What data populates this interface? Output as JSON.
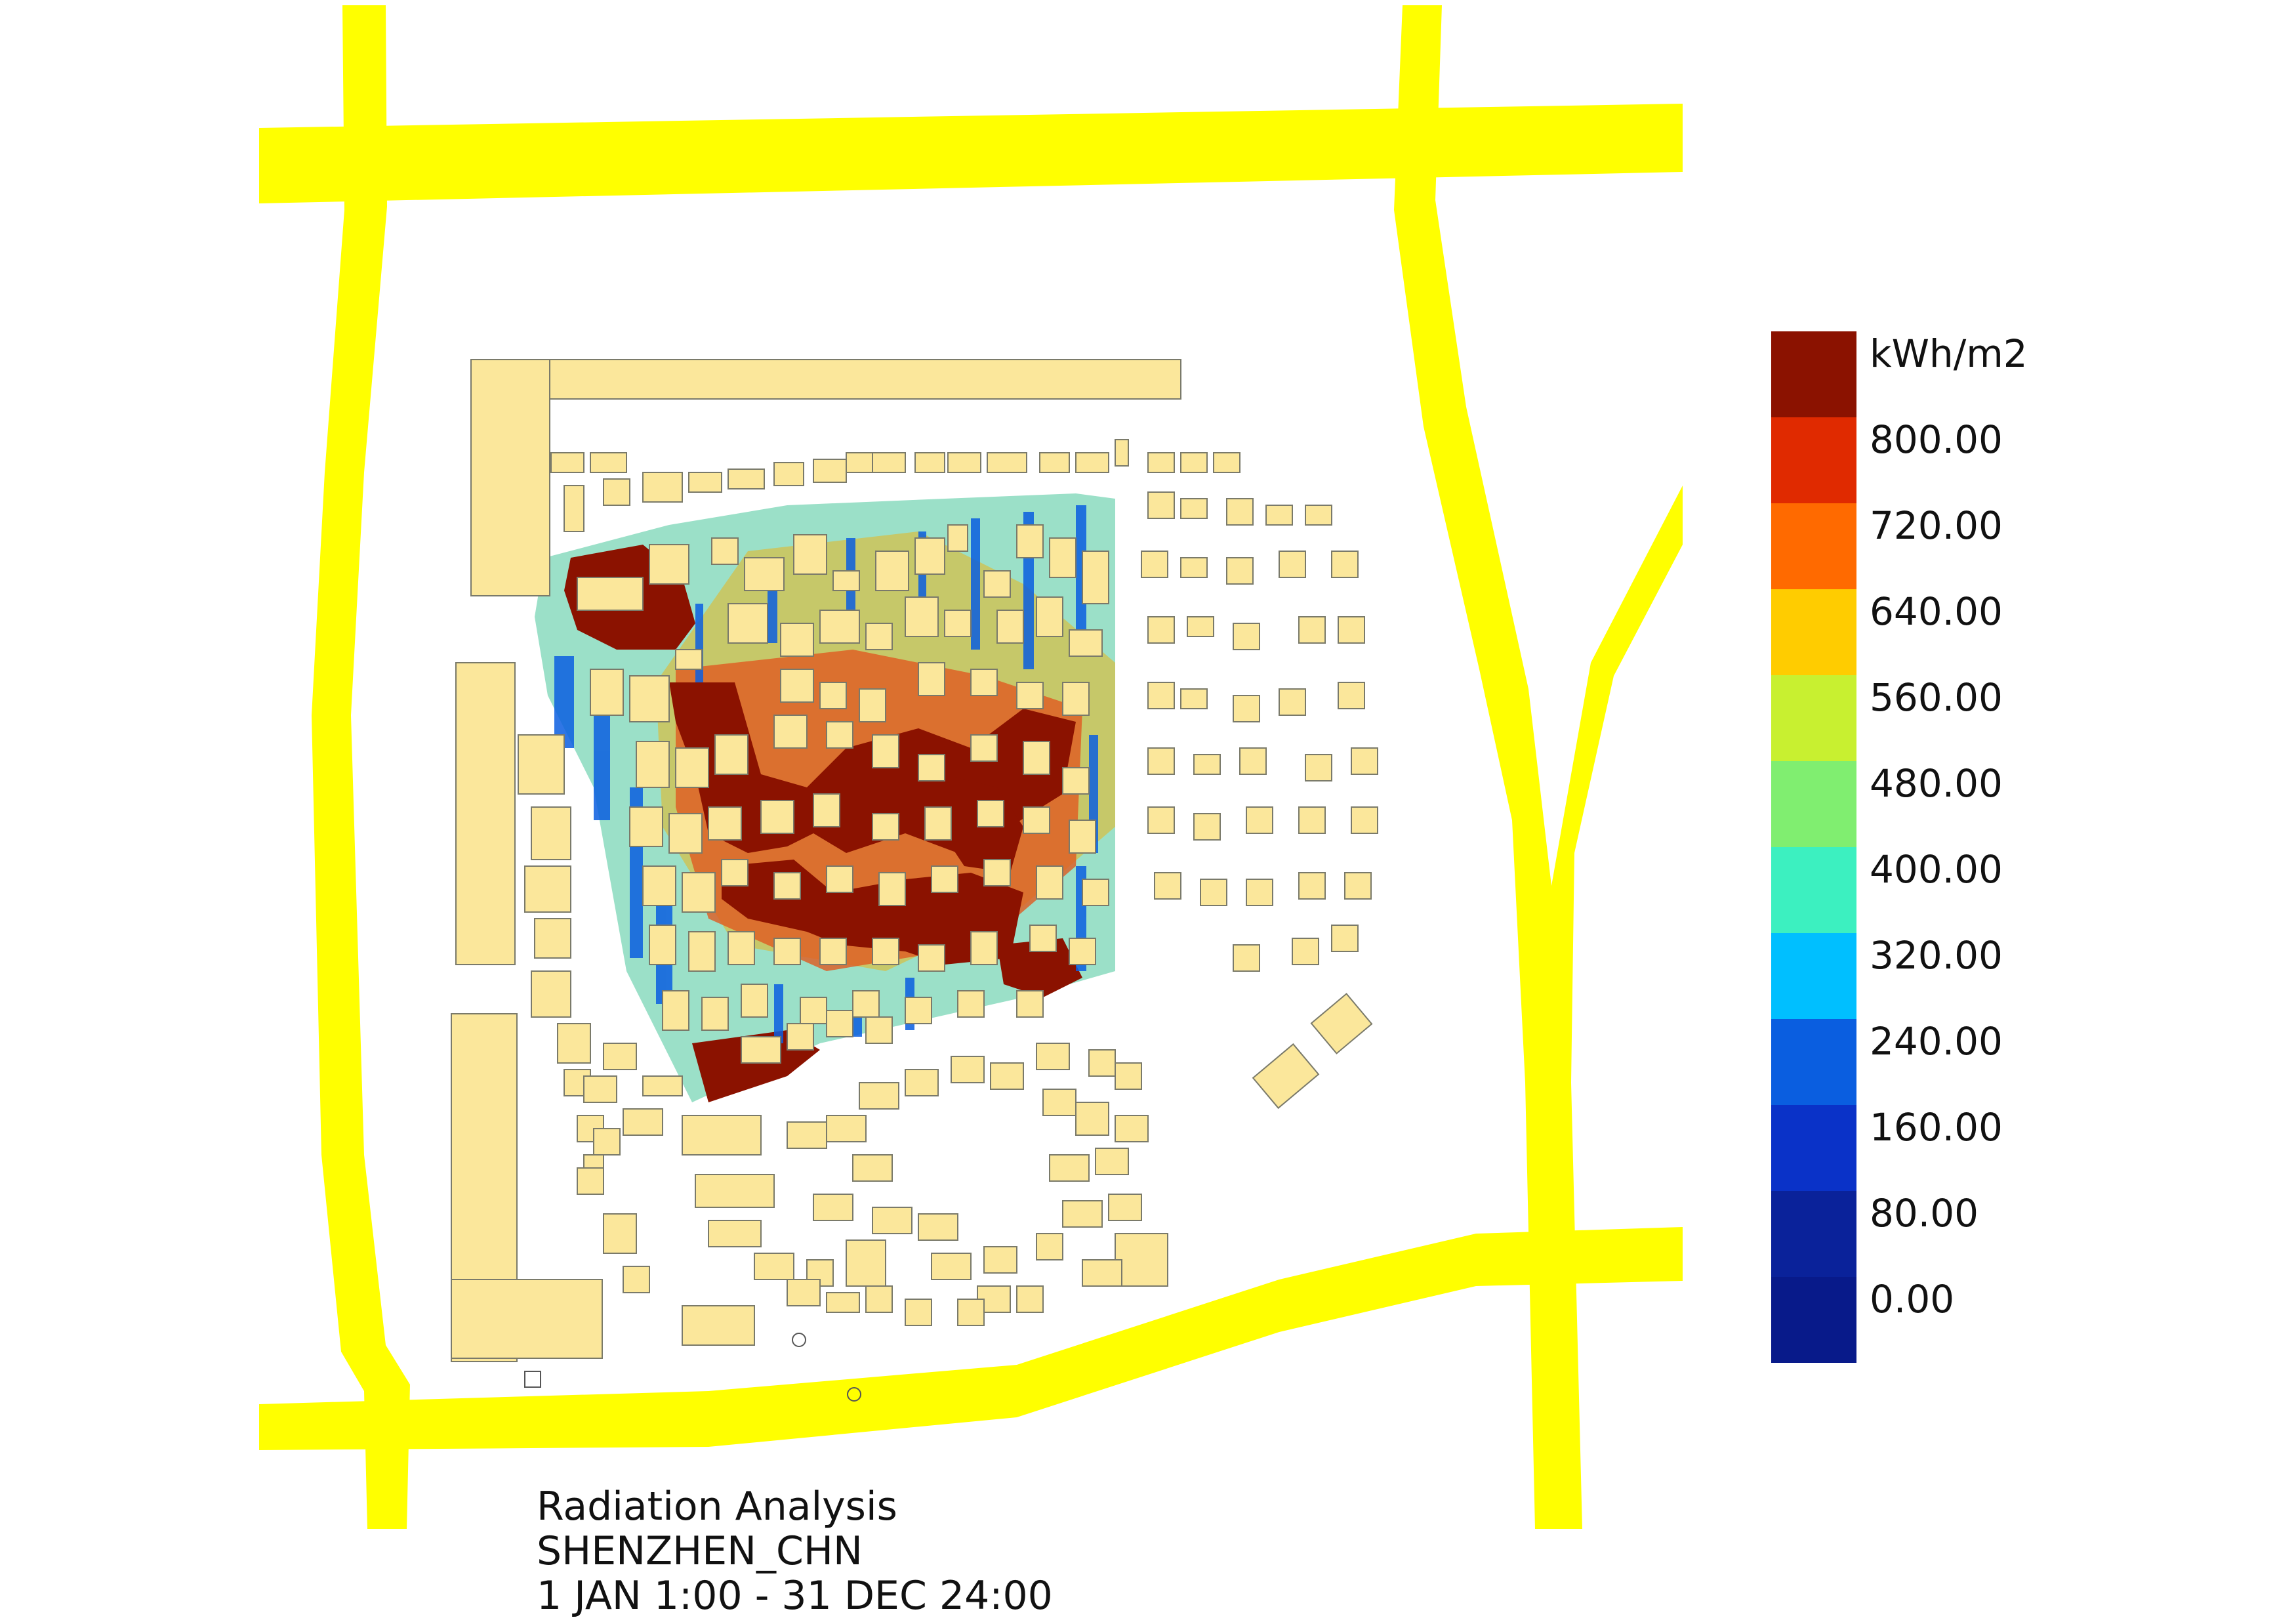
{
  "caption": {
    "line1": "Radiation Analysis",
    "line2": "SHENZHEN_CHN",
    "line3": "1 JAN 1:00 - 31 DEC 24:00"
  },
  "legend": {
    "unit": "kWh/m2",
    "ticks": [
      "800.00",
      "720.00",
      "640.00",
      "560.00",
      "480.00",
      "400.00",
      "320.00",
      "240.00",
      "160.00",
      "80.00",
      "0.00"
    ],
    "colors": [
      "#8b1200",
      "#e02a00",
      "#ff6a00",
      "#ffcc00",
      "#c8f030",
      "#80ee70",
      "#3cf0c0",
      "#00bfff",
      "#0a5ee0",
      "#0a32c8",
      "#0a229a",
      "#081a8a"
    ]
  },
  "map": {
    "road_color": "#ffff00",
    "building_color": "#fbe79b",
    "building_stroke": "#7a7a6a",
    "high_radiation_color": "#8b1200"
  }
}
